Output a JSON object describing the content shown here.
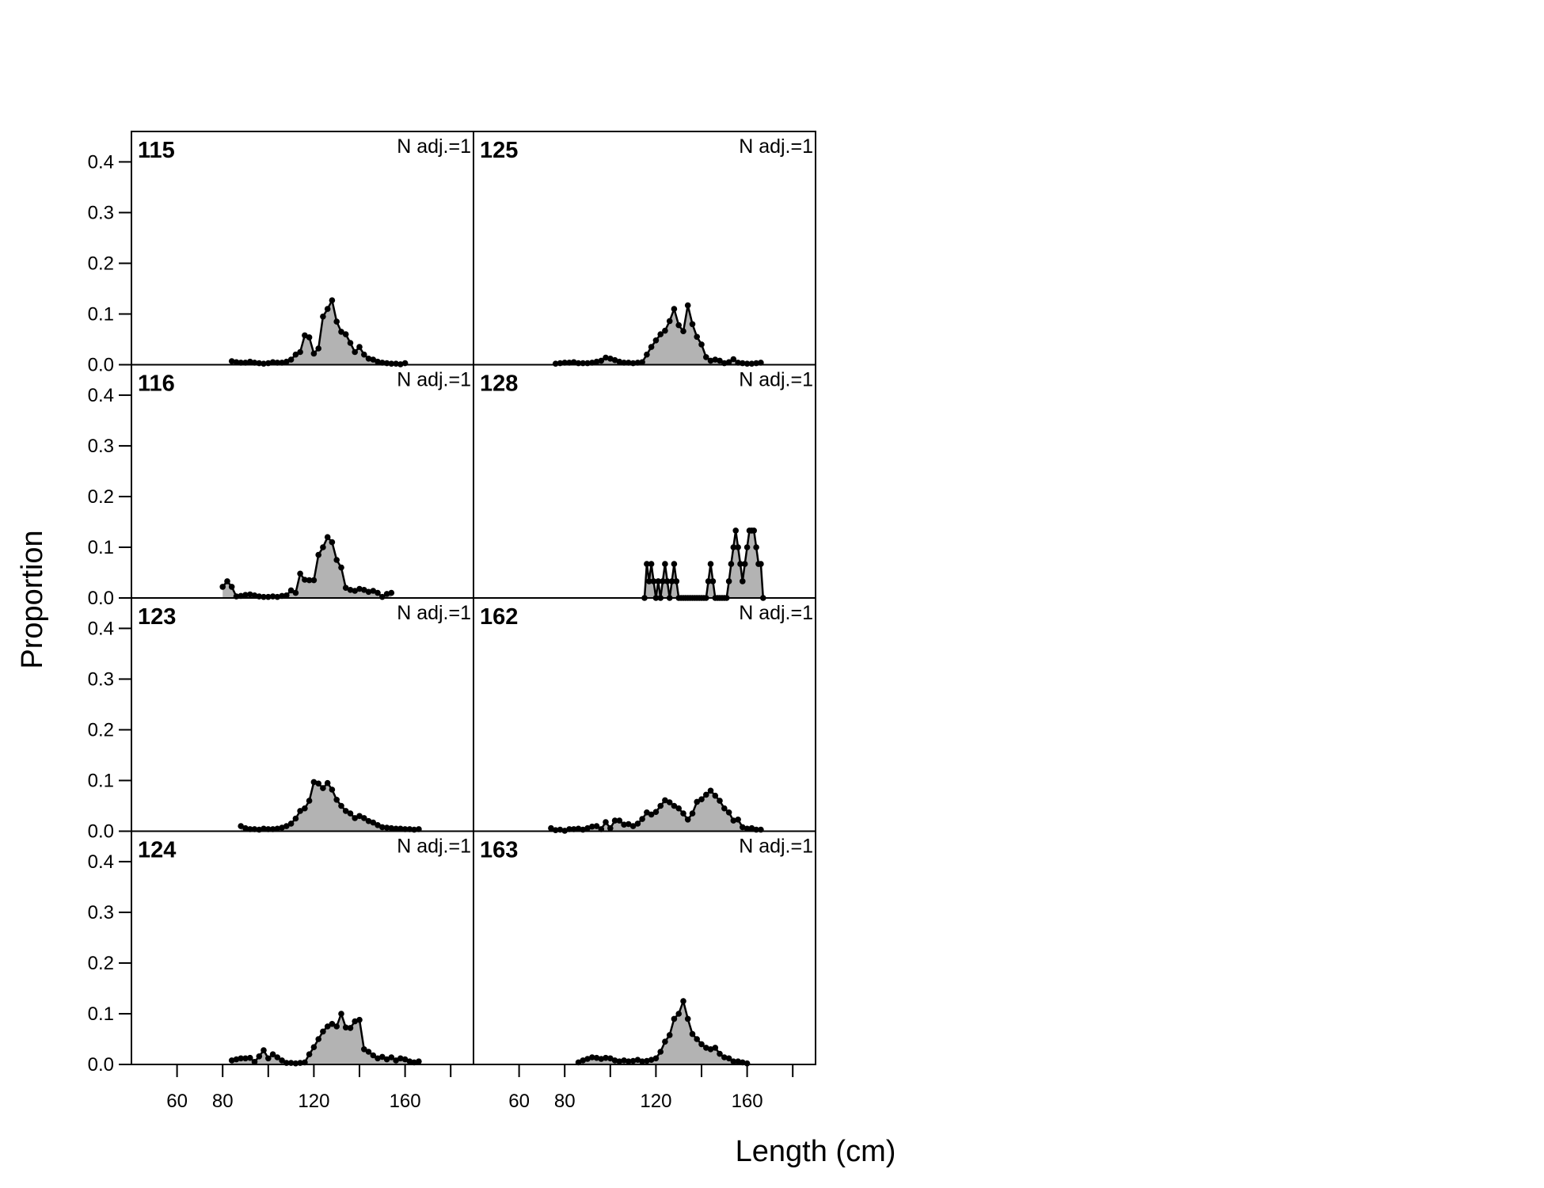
{
  "figure": {
    "ylabel": "Proportion",
    "xlabel": "Length (cm)"
  },
  "chart_data": {
    "type": "area",
    "xlim": [
      40,
      190
    ],
    "ylim": [
      0,
      0.46
    ],
    "x_ticks": [
      60,
      80,
      120,
      160
    ],
    "x_tick_marks": [
      60,
      80,
      100,
      120,
      140,
      160,
      180
    ],
    "y_ticks": [
      0.0,
      0.1,
      0.2,
      0.3,
      0.4
    ],
    "y_tick_labels": [
      "0.0",
      "0.1",
      "0.2",
      "0.3",
      "0.4"
    ],
    "fill_color": "#b3b3b3",
    "line_color": "#000000",
    "grid": false,
    "panels": [
      {
        "label": "115",
        "annotation": "N adj.=1",
        "x": [
          84,
          86,
          88,
          90,
          92,
          94,
          96,
          98,
          100,
          102,
          104,
          106,
          108,
          110,
          112,
          114,
          116,
          118,
          120,
          122,
          124,
          126,
          128,
          130,
          132,
          134,
          136,
          138,
          140,
          142,
          144,
          146,
          148,
          150,
          152,
          154,
          156,
          158,
          160
        ],
        "y": [
          0.007,
          0.005,
          0.004,
          0.004,
          0.006,
          0.004,
          0.003,
          0.002,
          0.003,
          0.005,
          0.004,
          0.004,
          0.006,
          0.01,
          0.02,
          0.025,
          0.058,
          0.054,
          0.022,
          0.032,
          0.095,
          0.11,
          0.127,
          0.085,
          0.065,
          0.06,
          0.043,
          0.025,
          0.035,
          0.02,
          0.012,
          0.01,
          0.006,
          0.004,
          0.003,
          0.002,
          0.002,
          0.001,
          0.003
        ]
      },
      {
        "label": "125",
        "annotation": "N adj.=1",
        "x": [
          76,
          78,
          80,
          82,
          84,
          86,
          88,
          90,
          92,
          94,
          96,
          98,
          100,
          102,
          104,
          106,
          108,
          110,
          112,
          114,
          116,
          118,
          120,
          122,
          124,
          126,
          128,
          130,
          132,
          134,
          136,
          138,
          140,
          142,
          144,
          146,
          148,
          150,
          152,
          154,
          156,
          158,
          160,
          162,
          164,
          166
        ],
        "y": [
          0.002,
          0.003,
          0.004,
          0.004,
          0.005,
          0.003,
          0.003,
          0.003,
          0.004,
          0.006,
          0.008,
          0.014,
          0.012,
          0.009,
          0.006,
          0.004,
          0.004,
          0.003,
          0.004,
          0.005,
          0.02,
          0.035,
          0.048,
          0.06,
          0.067,
          0.086,
          0.11,
          0.078,
          0.066,
          0.117,
          0.08,
          0.055,
          0.04,
          0.015,
          0.008,
          0.01,
          0.008,
          0.003,
          0.005,
          0.011,
          0.004,
          0.003,
          0.002,
          0.002,
          0.003,
          0.004
        ]
      },
      {
        "label": "116",
        "annotation": "N adj.=1",
        "x": [
          80,
          82,
          84,
          86,
          88,
          90,
          92,
          94,
          96,
          98,
          100,
          102,
          104,
          106,
          108,
          110,
          112,
          114,
          116,
          118,
          120,
          122,
          124,
          126,
          128,
          130,
          132,
          134,
          136,
          138,
          140,
          142,
          144,
          146,
          148,
          150,
          152,
          154
        ],
        "y": [
          0.022,
          0.033,
          0.022,
          0.003,
          0.004,
          0.006,
          0.007,
          0.005,
          0.003,
          0.002,
          0.002,
          0.003,
          0.002,
          0.004,
          0.005,
          0.015,
          0.01,
          0.048,
          0.036,
          0.035,
          0.035,
          0.085,
          0.1,
          0.12,
          0.11,
          0.075,
          0.06,
          0.02,
          0.016,
          0.014,
          0.018,
          0.016,
          0.012,
          0.014,
          0.01,
          0.002,
          0.008,
          0.01
        ]
      },
      {
        "label": "128",
        "annotation": "N adj.=1",
        "x": [
          115,
          116,
          117,
          118,
          119,
          120,
          121,
          122,
          123,
          124,
          125,
          126,
          127,
          128,
          129,
          130,
          131,
          132,
          133,
          134,
          135,
          136,
          137,
          138,
          139,
          140,
          141,
          142,
          143,
          144,
          145,
          146,
          147,
          148,
          149,
          150,
          151,
          152,
          153,
          154,
          155,
          156,
          157,
          158,
          159,
          160,
          161,
          162,
          163,
          164,
          165,
          166,
          167
        ],
        "y": [
          0,
          0.067,
          0.033,
          0.067,
          0.033,
          0,
          0.033,
          0,
          0.033,
          0.067,
          0.033,
          0,
          0.033,
          0.067,
          0.033,
          0,
          0,
          0,
          0,
          0,
          0,
          0,
          0,
          0,
          0,
          0,
          0,
          0,
          0.033,
          0.067,
          0.033,
          0,
          0,
          0,
          0,
          0,
          0,
          0.033,
          0.067,
          0.1,
          0.133,
          0.1,
          0.067,
          0.033,
          0.067,
          0.1,
          0.133,
          0.133,
          0.133,
          0.1,
          0.067,
          0.067,
          0
        ]
      },
      {
        "label": "123",
        "annotation": "N adj.=1",
        "x": [
          88,
          90,
          92,
          94,
          96,
          98,
          100,
          102,
          104,
          106,
          108,
          110,
          112,
          114,
          116,
          118,
          120,
          122,
          124,
          126,
          128,
          130,
          132,
          134,
          136,
          138,
          140,
          142,
          144,
          146,
          148,
          150,
          152,
          154,
          156,
          158,
          160,
          162,
          164,
          166
        ],
        "y": [
          0.01,
          0.006,
          0.004,
          0.004,
          0.003,
          0.005,
          0.004,
          0.004,
          0.005,
          0.007,
          0.01,
          0.015,
          0.025,
          0.04,
          0.045,
          0.06,
          0.097,
          0.094,
          0.085,
          0.095,
          0.082,
          0.062,
          0.05,
          0.04,
          0.035,
          0.026,
          0.03,
          0.026,
          0.02,
          0.017,
          0.012,
          0.008,
          0.007,
          0.006,
          0.005,
          0.005,
          0.004,
          0.004,
          0.003,
          0.004
        ]
      },
      {
        "label": "162",
        "annotation": "N adj.=1",
        "x": [
          74,
          76,
          78,
          80,
          82,
          84,
          86,
          88,
          90,
          92,
          94,
          96,
          98,
          100,
          102,
          104,
          106,
          108,
          110,
          112,
          114,
          116,
          118,
          120,
          122,
          124,
          126,
          128,
          130,
          132,
          134,
          136,
          138,
          140,
          142,
          144,
          146,
          148,
          150,
          152,
          154,
          156,
          158,
          160,
          162,
          164,
          166
        ],
        "y": [
          0.006,
          0.002,
          0.003,
          0.001,
          0.004,
          0.004,
          0.005,
          0.003,
          0.006,
          0.009,
          0.01,
          0.004,
          0.018,
          0.006,
          0.021,
          0.021,
          0.013,
          0.014,
          0.01,
          0.015,
          0.024,
          0.037,
          0.033,
          0.038,
          0.05,
          0.061,
          0.057,
          0.05,
          0.045,
          0.035,
          0.023,
          0.035,
          0.058,
          0.063,
          0.072,
          0.08,
          0.07,
          0.06,
          0.045,
          0.037,
          0.021,
          0.023,
          0.008,
          0.005,
          0.006,
          0.003,
          0.003
        ]
      },
      {
        "label": "124",
        "annotation": "N adj.=1",
        "x": [
          84,
          86,
          88,
          90,
          92,
          94,
          96,
          98,
          100,
          102,
          104,
          106,
          108,
          110,
          112,
          114,
          116,
          118,
          120,
          122,
          124,
          126,
          128,
          130,
          132,
          134,
          136,
          138,
          140,
          142,
          144,
          146,
          148,
          150,
          152,
          154,
          156,
          158,
          160,
          162,
          164,
          166
        ],
        "y": [
          0.008,
          0.01,
          0.012,
          0.012,
          0.013,
          0.005,
          0.016,
          0.028,
          0.012,
          0.02,
          0.014,
          0.008,
          0.003,
          0.003,
          0.002,
          0.003,
          0.004,
          0.02,
          0.034,
          0.05,
          0.065,
          0.075,
          0.08,
          0.075,
          0.1,
          0.073,
          0.072,
          0.085,
          0.088,
          0.03,
          0.025,
          0.018,
          0.012,
          0.015,
          0.01,
          0.014,
          0.008,
          0.012,
          0.01,
          0.006,
          0.004,
          0.006
        ]
      },
      {
        "label": "163",
        "annotation": "N adj.=1",
        "x": [
          86,
          88,
          90,
          92,
          94,
          96,
          98,
          100,
          102,
          104,
          106,
          108,
          110,
          112,
          114,
          116,
          118,
          120,
          122,
          124,
          126,
          128,
          130,
          132,
          134,
          136,
          138,
          140,
          142,
          144,
          146,
          148,
          150,
          152,
          154,
          156,
          158,
          160
        ],
        "y": [
          0.004,
          0.008,
          0.011,
          0.014,
          0.013,
          0.011,
          0.013,
          0.012,
          0.008,
          0.006,
          0.008,
          0.006,
          0.007,
          0.009,
          0.006,
          0.007,
          0.009,
          0.012,
          0.025,
          0.045,
          0.058,
          0.09,
          0.1,
          0.125,
          0.09,
          0.06,
          0.05,
          0.04,
          0.033,
          0.03,
          0.033,
          0.021,
          0.014,
          0.012,
          0.006,
          0.006,
          0.004,
          0.002
        ]
      }
    ]
  }
}
